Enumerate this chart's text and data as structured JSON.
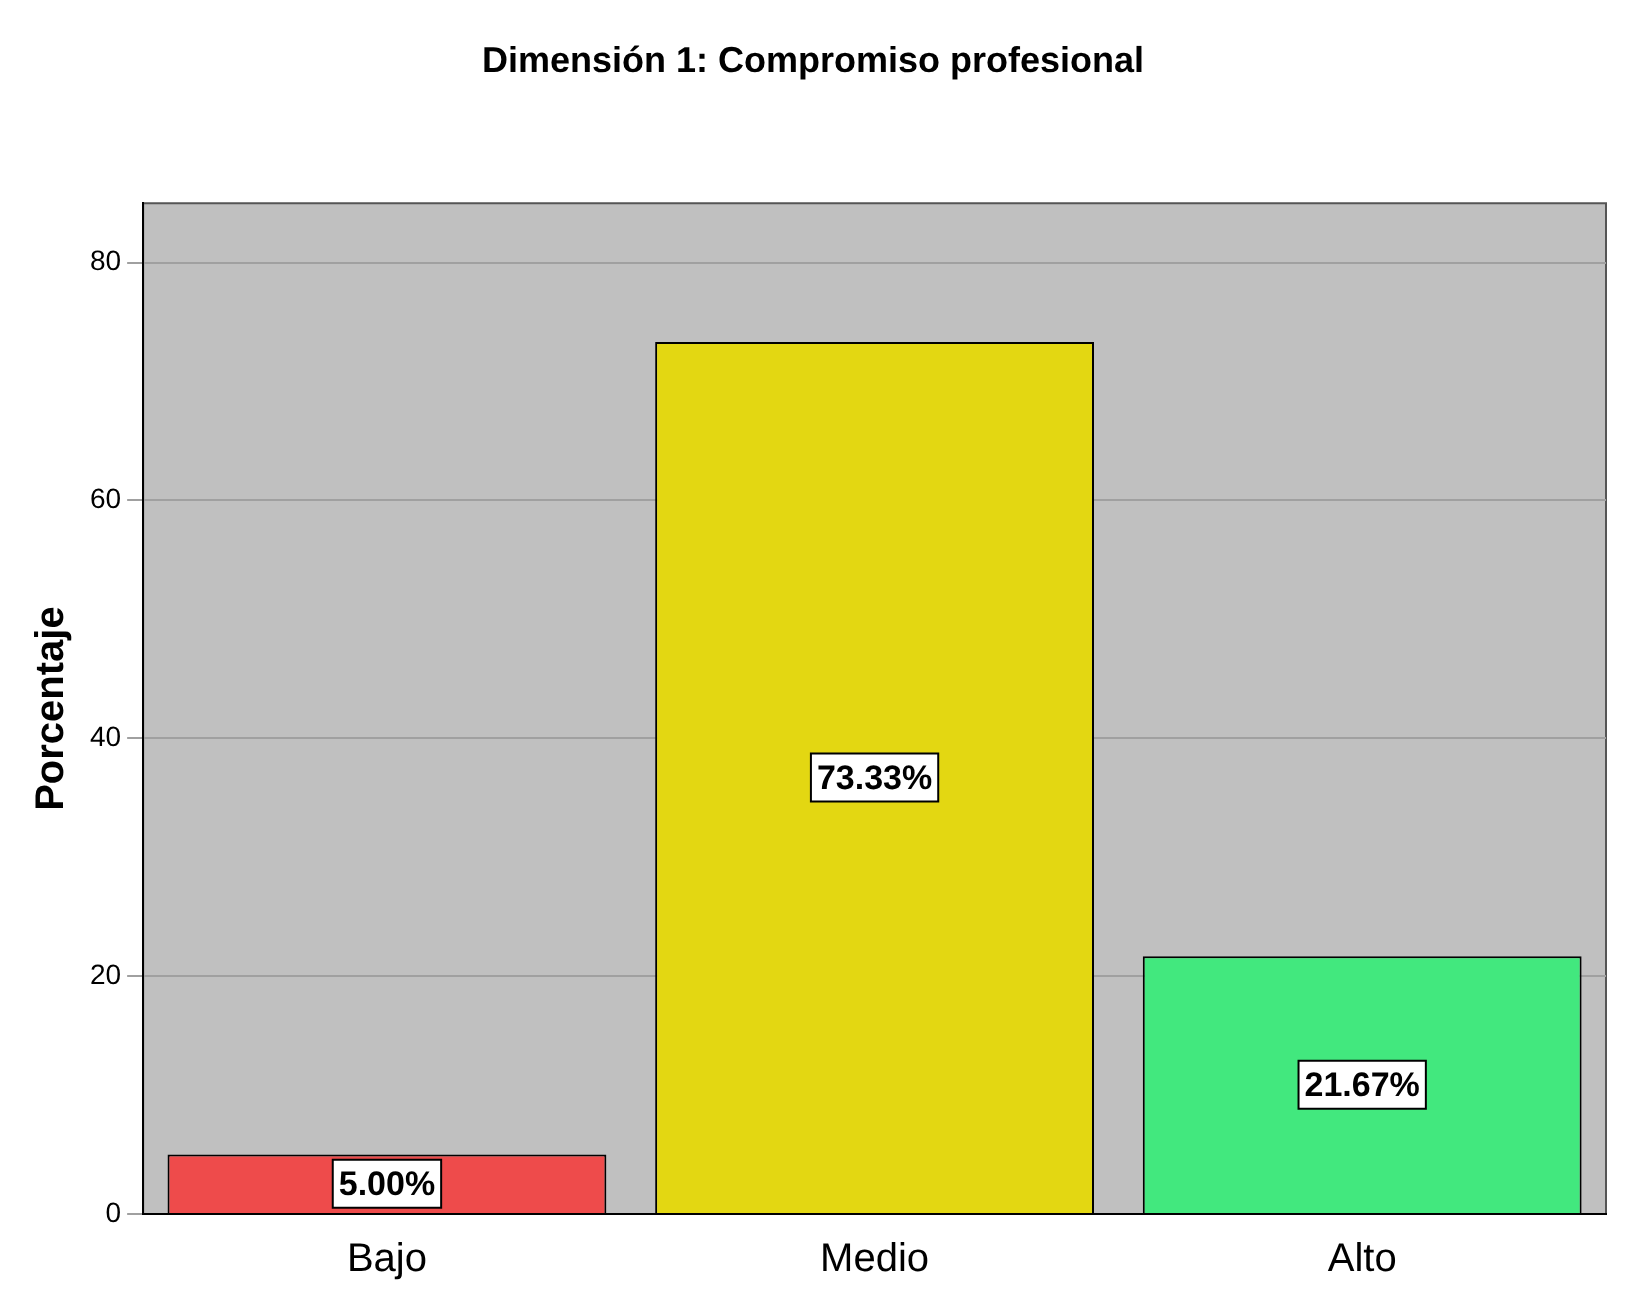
{
  "chart_data": {
    "type": "bar",
    "title": "Dimensión 1: Compromiso profesional",
    "ylabel": "Porcentaje",
    "categories": [
      "Bajo",
      "Medio",
      "Alto"
    ],
    "values": [
      5.0,
      73.33,
      21.67
    ],
    "colors": [
      "#ee4b4b",
      "#e3d712",
      "#42e87e"
    ],
    "value_labels": [
      "5.00%",
      "73.33%",
      "21.67%"
    ],
    "ylim": [
      0,
      85
    ],
    "yticks": [
      0,
      20,
      40,
      60,
      80
    ],
    "grid": "y",
    "legend": false
  }
}
